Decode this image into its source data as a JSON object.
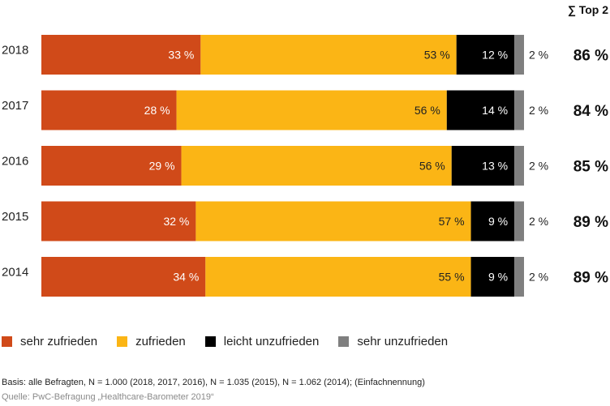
{
  "header": {
    "top2_label": "∑ Top 2"
  },
  "chart_data": {
    "type": "bar",
    "orientation": "horizontal",
    "stacked": true,
    "percent_stacked": true,
    "categories": [
      "2018",
      "2017",
      "2016",
      "2015",
      "2014"
    ],
    "series": [
      {
        "name": "sehr zufrieden",
        "color": "#d04a19",
        "values": [
          33,
          28,
          29,
          32,
          34
        ],
        "labels": [
          "33 %",
          "28 %",
          "29 %",
          "32 %",
          "34 %"
        ]
      },
      {
        "name": "zufrieden",
        "color": "#fbb515",
        "values": [
          53,
          56,
          56,
          57,
          55
        ],
        "labels": [
          "53 %",
          "56 %",
          "56 %",
          "57 %",
          "55 %"
        ]
      },
      {
        "name": "leicht unzufrieden",
        "color": "#000000",
        "values": [
          12,
          14,
          13,
          9,
          9
        ],
        "labels": [
          "12 %",
          "14 %",
          "13 %",
          "9 %",
          "9 %"
        ]
      },
      {
        "name": "sehr unzufrieden",
        "color": "#7f7f7f",
        "values": [
          2,
          2,
          2,
          2,
          2
        ],
        "labels": [
          "2 %",
          "2 %",
          "2 %",
          "2 %",
          "2 %"
        ]
      }
    ],
    "top2": [
      "86 %",
      "84 %",
      "85 %",
      "89 %",
      "89 %"
    ],
    "legend_position": "bottom",
    "grid": false
  },
  "footer": {
    "basis": "Basis: alle Befragten, N = 1.000 (2018, 2017, 2016), N = 1.035 (2015), N = 1.062 (2014); (Einfachnennung)",
    "source": "Quelle: PwC-Befragung „Healthcare-Barometer 2019“"
  }
}
